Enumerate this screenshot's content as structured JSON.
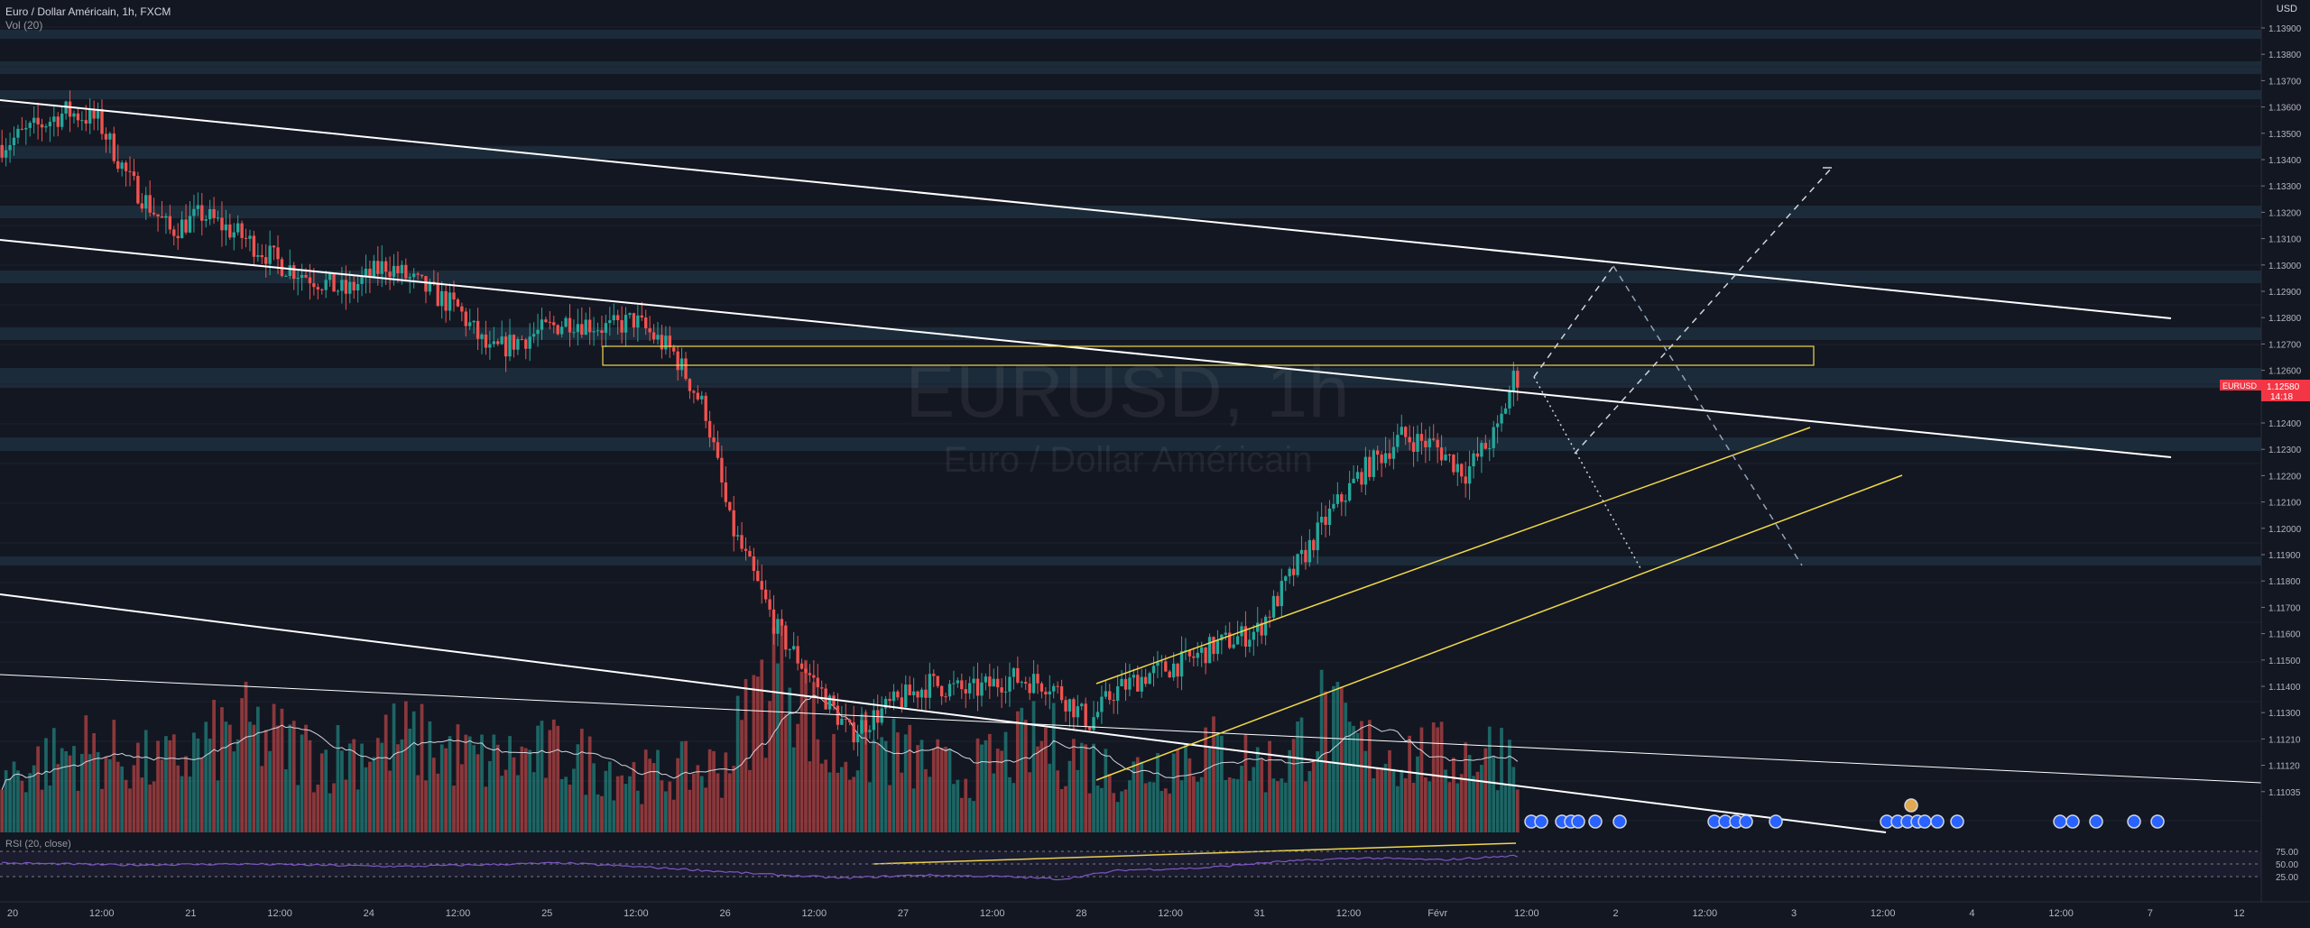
{
  "window": {
    "symbol_legend": "Euro / Dollar Américain, 1h, FXCM",
    "volume_legend": "Vol (20)",
    "rsi_legend": "RSI (20, close)",
    "watermark_symbol": "EURUSD, 1h",
    "watermark_name": "Euro / Dollar Américain",
    "currency": "USD"
  },
  "price_axis": {
    "ticks": [
      "1.13900",
      "1.13800",
      "1.13700",
      "1.13600",
      "1.13500",
      "1.13400",
      "1.13300",
      "1.13200",
      "1.13100",
      "1.13000",
      "1.12900",
      "1.12800",
      "1.12700",
      "1.12600",
      "1.12500",
      "1.12400",
      "1.12300",
      "1.12200",
      "1.12100",
      "1.12000",
      "1.11900",
      "1.11800",
      "1.11700",
      "1.11600",
      "1.11500",
      "1.11400",
      "1.11300",
      "1.11210",
      "1.11120",
      "1.11035"
    ],
    "last_price_badge": {
      "symbol": "EURUSD",
      "price": "1.12580",
      "countdown": "14:18"
    }
  },
  "rsi_axis": {
    "ticks": [
      "75.00",
      "50.00",
      "25.00"
    ]
  },
  "time_axis": {
    "labels": [
      "20",
      "12:00",
      "21",
      "12:00",
      "24",
      "12:00",
      "25",
      "12:00",
      "26",
      "12:00",
      "27",
      "12:00",
      "28",
      "12:00",
      "31",
      "12:00",
      "Févr",
      "12:00",
      "2",
      "12:00",
      "3",
      "12:00",
      "4",
      "12:00",
      "7",
      "12"
    ]
  },
  "colors": {
    "background": "#131722",
    "up": "#26a69a",
    "down": "#ef5350",
    "trendline": "#ffffff",
    "channel": "#f0d84a",
    "zone_fill": "#1f2f3d",
    "badge": "#f23645"
  },
  "chart_data": {
    "type": "candlestick",
    "instrument": "EURUSD",
    "timeframe": "1h",
    "price_range": [
      1.1098,
      1.1392
    ],
    "rsi_range": [
      0,
      100
    ],
    "last_price": 1.1258,
    "key_zone": [
      1.1265,
      1.1272
    ],
    "path": [
      [
        0,
        1.1343
      ],
      [
        16,
        1.1355
      ],
      [
        24,
        1.1352
      ],
      [
        32,
        1.133
      ],
      [
        42,
        1.1312
      ],
      [
        50,
        1.1318
      ],
      [
        60,
        1.131
      ],
      [
        70,
        1.13
      ],
      [
        86,
        1.129
      ],
      [
        96,
        1.13
      ],
      [
        114,
        1.1284
      ],
      [
        122,
        1.1268
      ],
      [
        128,
        1.1272
      ],
      [
        142,
        1.128
      ],
      [
        152,
        1.1277
      ],
      [
        158,
        1.128
      ],
      [
        168,
        1.1268
      ],
      [
        176,
        1.1247
      ],
      [
        182,
        1.1207
      ],
      [
        194,
        1.1168
      ],
      [
        204,
        1.1148
      ],
      [
        212,
        1.1131
      ],
      [
        222,
        1.1141
      ],
      [
        232,
        1.1149
      ],
      [
        242,
        1.1146
      ],
      [
        252,
        1.1151
      ],
      [
        262,
        1.1149
      ],
      [
        272,
        1.1135
      ],
      [
        278,
        1.1146
      ],
      [
        286,
        1.1152
      ],
      [
        296,
        1.1157
      ],
      [
        304,
        1.1163
      ],
      [
        314,
        1.1168
      ],
      [
        322,
        1.1187
      ],
      [
        332,
        1.121
      ],
      [
        340,
        1.1225
      ],
      [
        350,
        1.1238
      ],
      [
        358,
        1.1235
      ],
      [
        366,
        1.1225
      ],
      [
        374,
        1.124
      ],
      [
        378,
        1.1259
      ]
    ],
    "volume_path": [
      [
        0,
        0.3
      ],
      [
        20,
        0.45
      ],
      [
        40,
        0.35
      ],
      [
        60,
        0.55
      ],
      [
        80,
        0.4
      ],
      [
        100,
        0.5
      ],
      [
        120,
        0.38
      ],
      [
        140,
        0.42
      ],
      [
        160,
        0.3
      ],
      [
        180,
        0.35
      ],
      [
        196,
        1.0
      ],
      [
        206,
        0.4
      ],
      [
        220,
        0.45
      ],
      [
        240,
        0.3
      ],
      [
        260,
        0.5
      ],
      [
        280,
        0.3
      ],
      [
        300,
        0.45
      ],
      [
        320,
        0.35
      ],
      [
        330,
        0.62
      ],
      [
        340,
        0.45
      ],
      [
        360,
        0.4
      ],
      [
        378,
        0.45
      ]
    ],
    "rsi_path": [
      [
        0,
        52
      ],
      [
        30,
        48
      ],
      [
        60,
        50
      ],
      [
        100,
        45
      ],
      [
        140,
        52
      ],
      [
        170,
        40
      ],
      [
        190,
        30
      ],
      [
        210,
        22
      ],
      [
        230,
        28
      ],
      [
        250,
        25
      ],
      [
        265,
        20
      ],
      [
        280,
        38
      ],
      [
        300,
        42
      ],
      [
        320,
        55
      ],
      [
        340,
        62
      ],
      [
        360,
        58
      ],
      [
        378,
        66
      ]
    ]
  }
}
